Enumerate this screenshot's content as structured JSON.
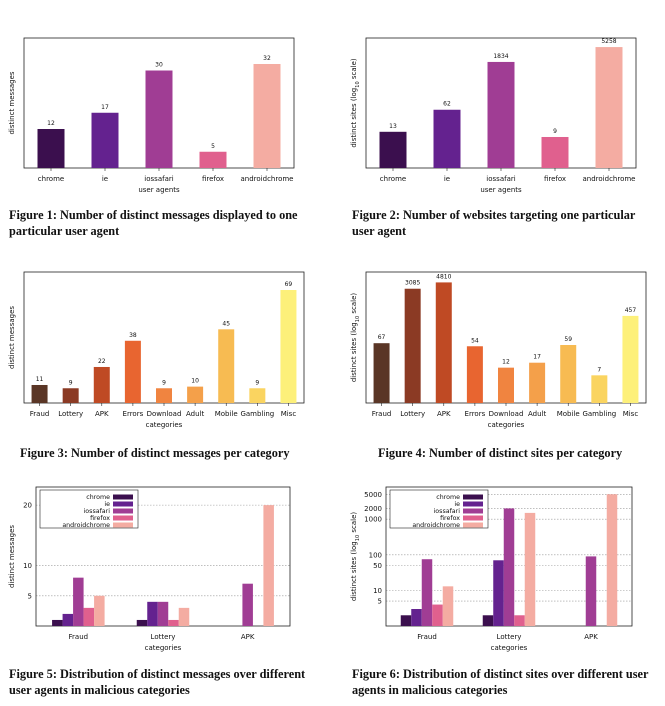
{
  "charts": [
    {
      "caption": "Figure 1: Number of distinct messages displayed to one particular user agent"
    },
    {
      "caption": "Figure 2: Number of websites targeting one particular user agent"
    },
    {
      "caption": "Figure 3: Number of distinct messages per category"
    },
    {
      "caption": "Figure 4: Number of distinct sites per category"
    },
    {
      "caption": "Figure 5: Distribution of distinct messages over different user agents in malicious categories"
    },
    {
      "caption": "Figure 6: Distribution of distinct sites over different user agents in malicious categories"
    }
  ],
  "chart_data": [
    {
      "type": "bar",
      "categories": [
        "chrome",
        "ie",
        "iossafari",
        "firefox",
        "androidchrome"
      ],
      "values": [
        12,
        17,
        30,
        5,
        32
      ],
      "colors": [
        "#3b0f4e",
        "#64228f",
        "#a03d94",
        "#e0608e",
        "#f4aca2"
      ],
      "xlabel": "user agents",
      "ylabel": "distinct messages",
      "ylim": [
        0,
        40
      ],
      "grid": false
    },
    {
      "type": "bar",
      "categories": [
        "chrome",
        "ie",
        "iossafari",
        "firefox",
        "androidchrome"
      ],
      "values": [
        13,
        62,
        1834,
        9,
        5258
      ],
      "colors": [
        "#3b0f4e",
        "#64228f",
        "#a03d94",
        "#e0608e",
        "#f4aca2"
      ],
      "xlabel": "user agents",
      "ylabel": "distinct sites (log10 scale)",
      "yscale": "log",
      "ylim": [
        1,
        10000
      ],
      "grid": false
    },
    {
      "type": "bar",
      "categories": [
        "Fraud",
        "Lottery",
        "APK",
        "Errors",
        "Download",
        "Adult",
        "Mobile",
        "Gambling",
        "Misc"
      ],
      "values": [
        11,
        9,
        22,
        38,
        9,
        10,
        45,
        9,
        69
      ],
      "colors": [
        "#5a3626",
        "#8b3a24",
        "#bf4a24",
        "#e86530",
        "#f08440",
        "#f4a04a",
        "#f7bb52",
        "#fad460",
        "#fdf07a"
      ],
      "xlabel": "categories",
      "ylabel": "distinct messages",
      "ylim": [
        0,
        80
      ],
      "grid": false
    },
    {
      "type": "bar",
      "categories": [
        "Fraud",
        "Lottery",
        "APK",
        "Errors",
        "Download",
        "Adult",
        "Mobile",
        "Gambling",
        "Misc"
      ],
      "values": [
        67,
        3085,
        4810,
        54,
        12,
        17,
        59,
        7,
        457
      ],
      "colors": [
        "#5a3626",
        "#8b3a24",
        "#bf4a24",
        "#e86530",
        "#f08440",
        "#f4a04a",
        "#f7bb52",
        "#fad460",
        "#fdf07a"
      ],
      "xlabel": "categories",
      "ylabel": "distinct sites (log10 scale)",
      "yscale": "log",
      "ylim": [
        1,
        10000
      ],
      "grid": false
    },
    {
      "type": "bar",
      "categories": [
        "Fraud",
        "Lottery",
        "APK"
      ],
      "series": [
        {
          "name": "chrome",
          "values": [
            1,
            1,
            0
          ],
          "color": "#3b0f4e"
        },
        {
          "name": "ie",
          "values": [
            2,
            4,
            0
          ],
          "color": "#64228f"
        },
        {
          "name": "iossafari",
          "values": [
            8,
            4,
            7
          ],
          "color": "#a03d94"
        },
        {
          "name": "firefox",
          "values": [
            3,
            1,
            0
          ],
          "color": "#e0608e"
        },
        {
          "name": "androidchrome",
          "values": [
            5,
            3,
            20
          ],
          "color": "#f4aca2"
        }
      ],
      "xlabel": "categories",
      "ylabel": "distinct messages",
      "yticks": [
        5,
        10,
        20
      ],
      "ylim": [
        0,
        23
      ],
      "grid": true,
      "legend": "top-left"
    },
    {
      "type": "bar",
      "categories": [
        "Fraud",
        "Lottery",
        "APK"
      ],
      "series": [
        {
          "name": "chrome",
          "values": [
            2,
            2,
            0
          ],
          "color": "#3b0f4e"
        },
        {
          "name": "ie",
          "values": [
            3,
            70,
            0
          ],
          "color": "#64228f"
        },
        {
          "name": "iossafari",
          "values": [
            75,
            2000,
            90
          ],
          "color": "#a03d94"
        },
        {
          "name": "firefox",
          "values": [
            4,
            2,
            0
          ],
          "color": "#e0608e"
        },
        {
          "name": "androidchrome",
          "values": [
            13,
            1500,
            5000
          ],
          "color": "#f4aca2"
        }
      ],
      "xlabel": "categories",
      "ylabel": "distinct sites (log10 scale)",
      "yscale": "log",
      "yticks": [
        5,
        10,
        50,
        100,
        1000,
        2000,
        5000
      ],
      "ylim": [
        1,
        8000
      ],
      "grid": true,
      "legend": "top-left"
    }
  ]
}
